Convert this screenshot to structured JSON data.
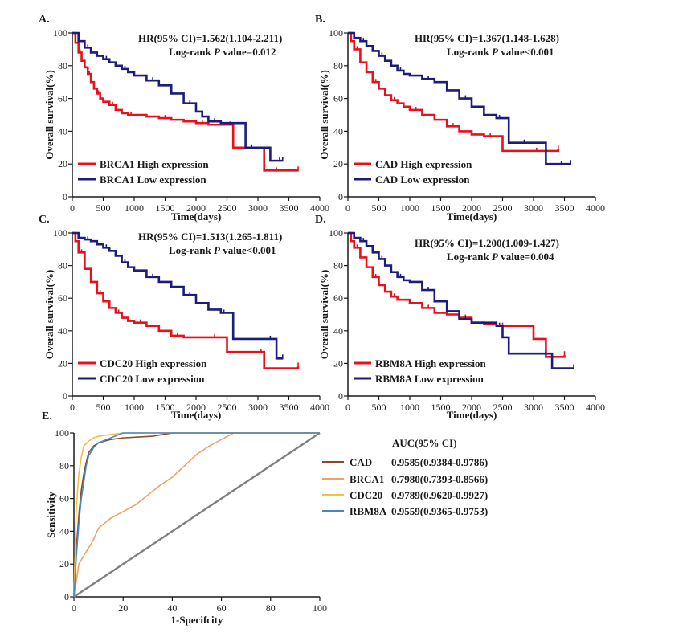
{
  "colors": {
    "high": "#e8101a",
    "low": "#1c1c7a",
    "axis": "#1a1a1a",
    "diag": "#808080",
    "CAD": "#8b4a2b",
    "BRCA1": "#f2a06a",
    "CDC20": "#f0c040",
    "RBM8A": "#4a86c0"
  },
  "chart_data": [
    {
      "id": "A",
      "label": "A.",
      "type": "line",
      "title": "",
      "xlabel": "Time(days)",
      "ylabel": "Overall survival(%)",
      "xlim": [
        0,
        4000
      ],
      "ylim": [
        0,
        100
      ],
      "xticks": [
        "0",
        "500",
        "1000",
        "1500",
        "2000",
        "2500",
        "3000",
        "3500",
        "4000"
      ],
      "yticks": [
        "0",
        "20",
        "40",
        "60",
        "80",
        "100"
      ],
      "hr_text": "HR(95% CI)=1.562(1.104-2.211)",
      "logrank_prefix": "Log-rank ",
      "logrank_p": "P",
      "logrank_suffix": " value=0.012",
      "series": [
        {
          "name": "BRCA1 High expression",
          "color_key": "high",
          "x": [
            0,
            50,
            100,
            150,
            200,
            250,
            300,
            350,
            400,
            450,
            500,
            600,
            700,
            800,
            900,
            1000,
            1200,
            1400,
            1600,
            1800,
            2000,
            2200,
            2400,
            2500,
            2600,
            3000,
            3100,
            3500,
            3650
          ],
          "y": [
            100,
            94,
            88,
            83,
            79,
            75,
            70,
            66,
            63,
            60,
            58,
            56,
            53,
            51,
            50,
            50,
            49,
            48,
            47,
            46,
            45,
            44,
            44,
            44,
            30,
            30,
            16,
            16,
            16
          ]
        },
        {
          "name": "BRCA1 Low  expression",
          "color_key": "low",
          "x": [
            0,
            100,
            200,
            300,
            400,
            500,
            600,
            700,
            800,
            900,
            1000,
            1200,
            1400,
            1600,
            1800,
            2000,
            2100,
            2200,
            2400,
            2500,
            2800,
            3000,
            3200,
            3300,
            3400
          ],
          "y": [
            100,
            95,
            91,
            88,
            86,
            84,
            82,
            80,
            78,
            76,
            74,
            71,
            68,
            63,
            57,
            52,
            49,
            46,
            45,
            45,
            30,
            30,
            22,
            22,
            22
          ]
        }
      ]
    },
    {
      "id": "B",
      "label": "B.",
      "type": "line",
      "title": "",
      "xlabel": "Time(days)",
      "ylabel": "Overall survival(%)",
      "xlim": [
        0,
        4000
      ],
      "ylim": [
        0,
        100
      ],
      "xticks": [
        "0",
        "500",
        "1000",
        "1500",
        "2000",
        "2500",
        "3000",
        "3500",
        "4000"
      ],
      "yticks": [
        "0",
        "20",
        "40",
        "60",
        "80",
        "100"
      ],
      "hr_text": "HR(95% CI)=1.367(1.148-1.628)",
      "logrank_prefix": "Log-rank ",
      "logrank_p": "P",
      "logrank_suffix": " value<0.001",
      "series": [
        {
          "name": "CAD High expression",
          "color_key": "high",
          "x": [
            0,
            50,
            100,
            200,
            300,
            400,
            500,
            600,
            700,
            800,
            900,
            1000,
            1200,
            1400,
            1600,
            1800,
            2000,
            2200,
            2400,
            2500,
            3000,
            3100,
            3400
          ],
          "y": [
            100,
            95,
            90,
            82,
            76,
            70,
            66,
            62,
            59,
            57,
            55,
            53,
            50,
            47,
            43,
            40,
            38,
            37,
            37,
            28,
            28,
            28,
            29
          ]
        },
        {
          "name": "CAD Low  expression",
          "color_key": "low",
          "x": [
            0,
            100,
            200,
            300,
            400,
            500,
            600,
            700,
            800,
            900,
            1000,
            1200,
            1400,
            1600,
            1800,
            2000,
            2200,
            2400,
            2500,
            2600,
            2700,
            3000,
            3200,
            3300,
            3600
          ],
          "y": [
            100,
            97,
            95,
            92,
            89,
            86,
            83,
            80,
            77,
            75,
            74,
            72,
            70,
            65,
            60,
            55,
            50,
            48,
            48,
            33,
            33,
            33,
            20,
            20,
            20
          ]
        }
      ]
    },
    {
      "id": "C",
      "label": "C.",
      "type": "line",
      "title": "",
      "xlabel": "Time(days)",
      "ylabel": "Overall survival(%)",
      "xlim": [
        0,
        4000
      ],
      "ylim": [
        0,
        100
      ],
      "xticks": [
        "0",
        "500",
        "1000",
        "1500",
        "2000",
        "2500",
        "3000",
        "3500",
        "4000"
      ],
      "yticks": [
        "0",
        "20",
        "40",
        "60",
        "80",
        "100"
      ],
      "hr_text": "HR(95% CI)=1.513(1.265-1.811)",
      "logrank_prefix": "Log-rank ",
      "logrank_p": "P",
      "logrank_suffix": " value<0.001",
      "series": [
        {
          "name": "CDC20 High expression",
          "color_key": "high",
          "x": [
            0,
            50,
            100,
            200,
            300,
            400,
            500,
            600,
            700,
            800,
            900,
            1000,
            1200,
            1400,
            1600,
            1800,
            2000,
            2200,
            2400,
            2500,
            3000,
            3100,
            3500,
            3650
          ],
          "y": [
            100,
            95,
            88,
            78,
            70,
            63,
            58,
            54,
            51,
            48,
            46,
            45,
            43,
            40,
            37,
            36,
            36,
            36,
            36,
            27,
            27,
            17,
            17,
            18
          ]
        },
        {
          "name": "CDC20 Low  expression",
          "color_key": "low",
          "x": [
            0,
            100,
            200,
            300,
            400,
            500,
            600,
            700,
            800,
            900,
            1000,
            1200,
            1400,
            1600,
            1800,
            2000,
            2200,
            2400,
            2500,
            2600,
            3100,
            3300,
            3400
          ],
          "y": [
            100,
            97,
            96,
            95,
            93,
            91,
            89,
            86,
            82,
            79,
            77,
            73,
            70,
            67,
            62,
            57,
            53,
            51,
            51,
            35,
            35,
            23,
            23
          ]
        }
      ]
    },
    {
      "id": "D",
      "label": "D.",
      "type": "line",
      "title": "",
      "xlabel": "Time(days)",
      "ylabel": "Overall survival(%)",
      "xlim": [
        0,
        4000
      ],
      "ylim": [
        0,
        100
      ],
      "xticks": [
        "0",
        "500",
        "1000",
        "1500",
        "2000",
        "2500",
        "3000",
        "3500",
        "4000"
      ],
      "yticks": [
        "0",
        "20",
        "40",
        "60",
        "80",
        "100"
      ],
      "hr_text": "HR(95% CI)=1.200(1.009-1.427)",
      "logrank_prefix": "Log-rank ",
      "logrank_p": "P",
      "logrank_suffix": " value=0.004",
      "series": [
        {
          "name": "RBM8A High expression",
          "color_key": "high",
          "x": [
            0,
            50,
            100,
            200,
            300,
            400,
            500,
            600,
            700,
            800,
            1000,
            1200,
            1400,
            1600,
            1800,
            2000,
            2200,
            2400,
            2600,
            3000,
            3200,
            3400,
            3500
          ],
          "y": [
            100,
            95,
            91,
            85,
            79,
            73,
            68,
            64,
            61,
            59,
            57,
            54,
            51,
            50,
            48,
            45,
            44,
            43,
            43,
            35,
            24,
            24,
            25
          ]
        },
        {
          "name": "RBM8A Low  expression",
          "color_key": "low",
          "x": [
            0,
            100,
            200,
            300,
            400,
            500,
            600,
            700,
            800,
            900,
            1000,
            1200,
            1400,
            1600,
            1800,
            2000,
            2200,
            2400,
            2500,
            2600,
            3100,
            3300,
            3650
          ],
          "y": [
            100,
            97,
            95,
            92,
            88,
            84,
            80,
            76,
            73,
            71,
            70,
            65,
            58,
            52,
            47,
            45,
            45,
            43,
            36,
            26,
            26,
            17,
            17
          ]
        }
      ]
    },
    {
      "id": "E",
      "label": "E.",
      "type": "line",
      "title": "",
      "xlabel": "1-Specifcity",
      "ylabel": "Sensitivity",
      "xlim": [
        0,
        100
      ],
      "ylim": [
        0,
        100
      ],
      "xticks": [
        "0",
        "20",
        "40",
        "60",
        "80",
        "100"
      ],
      "yticks": [
        "0",
        "20",
        "40",
        "60",
        "80",
        "100"
      ],
      "legend_title": "AUC(95% CI)",
      "series": [
        {
          "name": "CAD",
          "auc": "0.9585(0.9384-0.9786)",
          "color_key": "CAD",
          "x": [
            0,
            0.5,
            1,
            2,
            3,
            4,
            5,
            6,
            8,
            10,
            15,
            20,
            32,
            40,
            100
          ],
          "y": [
            0,
            15,
            30,
            50,
            65,
            75,
            82,
            88,
            92,
            94,
            96,
            97,
            98,
            100,
            100
          ]
        },
        {
          "name": "BRCA1",
          "auc": "0.7980(0.7393-0.8566)",
          "color_key": "BRCA1",
          "x": [
            0,
            1,
            2,
            4,
            6,
            8,
            10,
            15,
            20,
            25,
            30,
            35,
            40,
            45,
            50,
            55,
            60,
            65,
            70,
            100
          ],
          "y": [
            0,
            10,
            20,
            25,
            30,
            35,
            42,
            48,
            52,
            56,
            62,
            68,
            73,
            80,
            87,
            92,
            96,
            100,
            100,
            100
          ]
        },
        {
          "name": "CDC20",
          "auc": "0.9789(0.9620-0.9927)",
          "color_key": "CDC20",
          "x": [
            0,
            0.5,
            1,
            2,
            3,
            4,
            6,
            8,
            10,
            15,
            20,
            100
          ],
          "y": [
            0,
            30,
            55,
            75,
            85,
            92,
            95,
            97,
            98,
            99,
            100,
            100
          ]
        },
        {
          "name": "RBM8A",
          "auc": "0.9559(0.9365-0.9753)",
          "color_key": "RBM8A",
          "x": [
            0,
            0.5,
            1,
            2,
            3,
            4,
            5,
            6,
            8,
            10,
            15,
            20,
            100
          ],
          "y": [
            0,
            12,
            25,
            45,
            60,
            70,
            80,
            86,
            91,
            94,
            97,
            100,
            100
          ]
        },
        {
          "name": "Reference",
          "auc": "",
          "color_key": "diag",
          "x": [
            0,
            100
          ],
          "y": [
            0,
            100
          ]
        }
      ]
    }
  ]
}
